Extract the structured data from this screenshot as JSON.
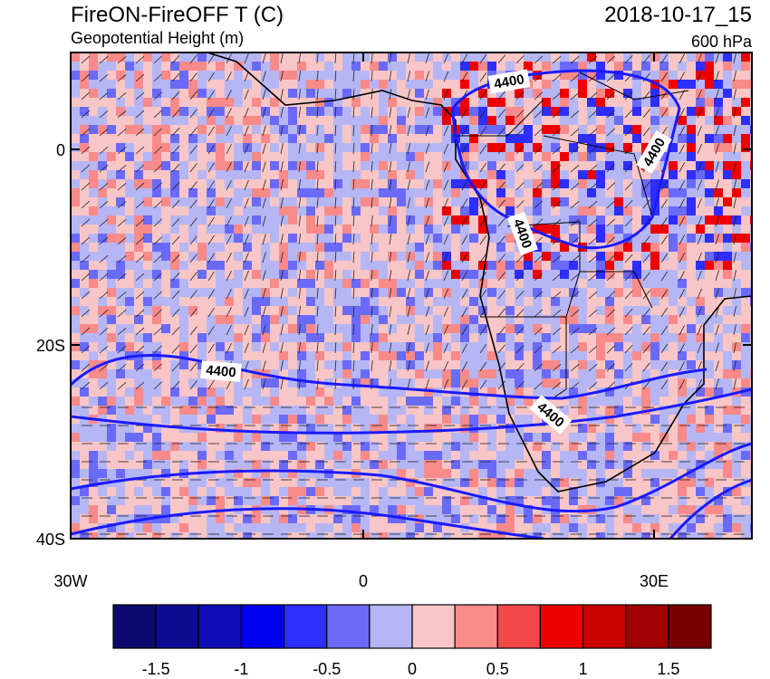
{
  "header": {
    "title": "FireON-FireOFF T (C)",
    "subtitle": "Geopotential Height (m)",
    "time": "2018-10-17_15",
    "level": "600 hPa"
  },
  "map": {
    "yticks": [
      "0",
      "20S",
      "40S"
    ],
    "xticks": [
      "30W",
      "0",
      "30E"
    ],
    "contour_labels": [
      "4400",
      "4400",
      "4400",
      "4400",
      "4400"
    ]
  },
  "colorbar": {
    "colors": [
      "#0a0a6e",
      "#0c0c90",
      "#0e0eb8",
      "#0000f0",
      "#2e2eff",
      "#6a6af8",
      "#b6b6f4",
      "#f8c6c6",
      "#f88a8a",
      "#f44848",
      "#ee0000",
      "#cc0000",
      "#a00000",
      "#780000"
    ],
    "labels": [
      "-1.5",
      "-1",
      "-0.5",
      "0",
      "0.5",
      "1",
      "1.5"
    ]
  }
}
